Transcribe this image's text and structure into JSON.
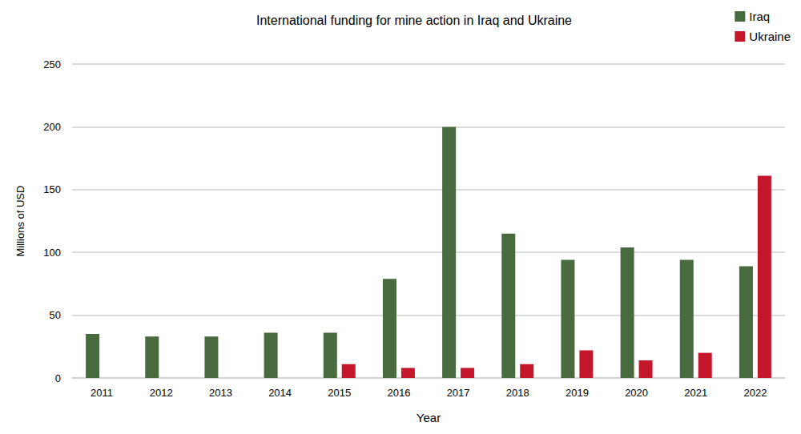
{
  "chart_data": {
    "type": "bar",
    "title": "International funding for mine action in Iraq and Ukraine",
    "x_label": "Year",
    "y_label": "Millions of USD",
    "categories": [
      "2011",
      "2012",
      "2013",
      "2014",
      "2015",
      "2016",
      "2017",
      "2018",
      "2019",
      "2020",
      "2021",
      "2022"
    ],
    "series": [
      {
        "name": "Iraq",
        "color": "#476a3e",
        "values": [
          35,
          33,
          33,
          36,
          36,
          79,
          200,
          115,
          94,
          104,
          94,
          89
        ]
      },
      {
        "name": "Ukraine",
        "color": "#c4172c",
        "values": [
          null,
          null,
          null,
          null,
          11,
          8,
          8,
          11,
          22,
          14,
          20,
          161
        ]
      }
    ],
    "ylim": [
      0,
      250
    ],
    "yticks": [
      0,
      50,
      100,
      150,
      200,
      250
    ],
    "grid": true,
    "legend": "top-right"
  }
}
